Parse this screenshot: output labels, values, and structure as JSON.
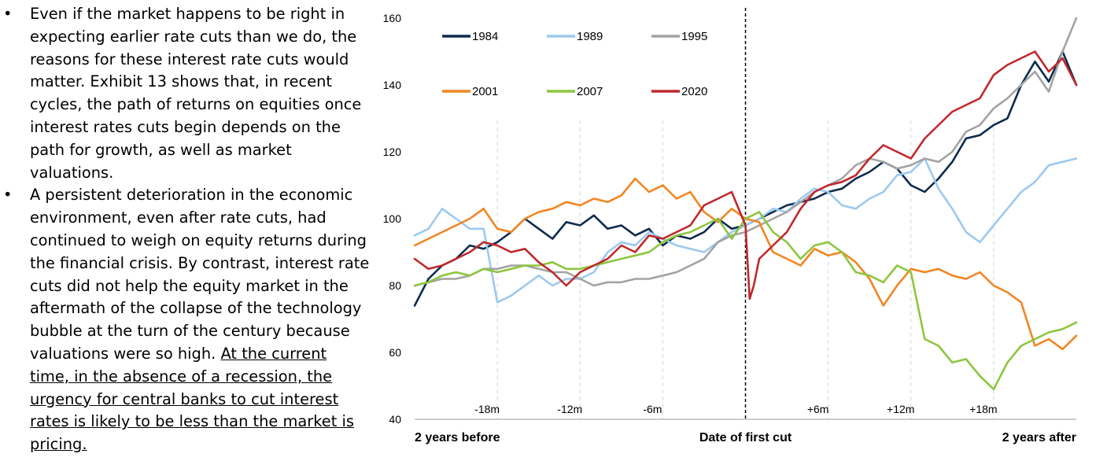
{
  "bullets": [
    {
      "text": "Even if the market happens to be right in expecting earlier rate cuts than we do, the reasons for these interest rate cuts would matter. Exhibit 13 shows that, in recent cycles, the path of returns on equities once interest rates cuts begin depends on the path for growth, as well as market valuations.",
      "underlined": ""
    },
    {
      "text": "A persistent deterioration in the economic environment, even after rate cuts, had continued to weigh on equity returns during the financial crisis. By contrast, interest rate cuts did not help the equity market in the aftermath of the collapse of the technology bubble at the turn of the century because valuations were so high.",
      "underlined": "At the current time, in the absence of a recession, the urgency for central banks to cut interest rates is likely to be less than the market is pricing."
    }
  ],
  "chart_data": {
    "type": "line",
    "title": "",
    "xlabel": "",
    "ylabel": "",
    "x_unit": "months relative to date of first cut",
    "xlim": [
      -24,
      24
    ],
    "ylim": [
      40,
      160
    ],
    "y_ticks": [
      40,
      60,
      80,
      100,
      120,
      140,
      160
    ],
    "x_ticks": [
      {
        "x": -18,
        "label": "-18m"
      },
      {
        "x": -12,
        "label": "-12m"
      },
      {
        "x": -6,
        "label": "-6m"
      },
      {
        "x": 6,
        "label": "+6m"
      },
      {
        "x": 12,
        "label": "+12m"
      },
      {
        "x": 18,
        "label": "+18m"
      }
    ],
    "x_labels_bottom": [
      {
        "x": -24,
        "label": "2 years before",
        "anchor": "start"
      },
      {
        "x": 0,
        "label": "Date of first cut",
        "anchor": "middle"
      },
      {
        "x": 24,
        "label": "2 years after",
        "anchor": "end"
      }
    ],
    "cut_line_x": 0,
    "grid": "vertical dashed at 6-month intervals",
    "legend": "top-left, two rows",
    "series": [
      {
        "name": "1984",
        "color": "#0d2a4d",
        "x": [
          -24,
          -23,
          -22,
          -21,
          -20,
          -19,
          -18,
          -17,
          -16,
          -15,
          -14,
          -13,
          -12,
          -11,
          -10,
          -9,
          -8,
          -7,
          -6,
          -5,
          -4,
          -3,
          -2,
          -1,
          0,
          1,
          2,
          3,
          4,
          5,
          6,
          7,
          8,
          9,
          10,
          11,
          12,
          13,
          14,
          15,
          16,
          17,
          18,
          19,
          20,
          21,
          22,
          23,
          24
        ],
        "y": [
          74,
          82,
          86,
          88,
          92,
          91,
          93,
          96,
          100,
          97,
          94,
          99,
          98,
          101,
          97,
          98,
          95,
          97,
          92,
          95,
          94,
          96,
          100,
          97,
          98,
          100,
          102,
          104,
          105,
          106,
          108,
          109,
          112,
          114,
          117,
          115,
          110,
          108,
          112,
          117,
          124,
          125,
          128,
          130,
          140,
          147,
          141,
          150,
          140
        ]
      },
      {
        "name": "1989",
        "color": "#9cc9ef",
        "x": [
          -24,
          -23,
          -22,
          -21,
          -20,
          -19,
          -18,
          -17,
          -16,
          -15,
          -14,
          -13,
          -12,
          -11,
          -10,
          -9,
          -8,
          -7,
          -6,
          -5,
          -4,
          -3,
          -2,
          -1,
          0,
          1,
          2,
          3,
          4,
          5,
          6,
          7,
          8,
          9,
          10,
          11,
          12,
          13,
          14,
          15,
          16,
          17,
          18,
          19,
          20,
          21,
          22,
          23,
          24
        ],
        "y": [
          95,
          97,
          103,
          100,
          97,
          97,
          75,
          77,
          80,
          83,
          80,
          82,
          82,
          84,
          90,
          93,
          92,
          96,
          94,
          92,
          91,
          90,
          93,
          96,
          98,
          100,
          103,
          102,
          106,
          109,
          108,
          104,
          103,
          106,
          108,
          113,
          114,
          118,
          109,
          103,
          96,
          93,
          98,
          103,
          108,
          111,
          116,
          117,
          118
        ]
      },
      {
        "name": "1995",
        "color": "#a3a3a3",
        "x": [
          -24,
          -23,
          -22,
          -21,
          -20,
          -19,
          -18,
          -17,
          -16,
          -15,
          -14,
          -13,
          -12,
          -11,
          -10,
          -9,
          -8,
          -7,
          -6,
          -5,
          -4,
          -3,
          -2,
          -1,
          0,
          1,
          2,
          3,
          4,
          5,
          6,
          7,
          8,
          9,
          10,
          11,
          12,
          13,
          14,
          15,
          16,
          17,
          18,
          19,
          20,
          21,
          22,
          23,
          24
        ],
        "y": [
          80,
          81,
          82,
          82,
          83,
          85,
          85,
          86,
          86,
          85,
          84,
          84,
          82,
          80,
          81,
          81,
          82,
          82,
          83,
          84,
          86,
          88,
          93,
          95,
          96,
          98,
          100,
          102,
          105,
          108,
          110,
          112,
          116,
          118,
          117,
          115,
          116,
          118,
          117,
          120,
          126,
          128,
          133,
          136,
          140,
          144,
          138,
          150,
          160
        ]
      },
      {
        "name": "2001",
        "color": "#f28522",
        "x": [
          -24,
          -23,
          -22,
          -21,
          -20,
          -19,
          -18,
          -17,
          -16,
          -15,
          -14,
          -13,
          -12,
          -11,
          -10,
          -9,
          -8,
          -7,
          -6,
          -5,
          -4,
          -3,
          -2,
          -1,
          0,
          1,
          2,
          3,
          4,
          5,
          6,
          7,
          8,
          9,
          10,
          11,
          12,
          13,
          14,
          15,
          16,
          17,
          18,
          19,
          20,
          21,
          22,
          23,
          24
        ],
        "y": [
          92,
          94,
          96,
          98,
          100,
          103,
          97,
          96,
          100,
          102,
          103,
          105,
          104,
          106,
          105,
          107,
          112,
          108,
          110,
          106,
          108,
          102,
          99,
          103,
          100,
          99,
          90,
          88,
          86,
          91,
          89,
          90,
          87,
          82,
          74,
          80,
          85,
          84,
          85,
          83,
          82,
          84,
          80,
          78,
          75,
          62,
          64,
          61,
          65
        ]
      },
      {
        "name": "2007",
        "color": "#8dc63f",
        "x": [
          -24,
          -23,
          -22,
          -21,
          -20,
          -19,
          -18,
          -17,
          -16,
          -15,
          -14,
          -13,
          -12,
          -11,
          -10,
          -9,
          -8,
          -7,
          -6,
          -5,
          -4,
          -3,
          -2,
          -1,
          0,
          1,
          2,
          3,
          4,
          5,
          6,
          7,
          8,
          9,
          10,
          11,
          12,
          13,
          14,
          15,
          16,
          17,
          18,
          19,
          20,
          21,
          22,
          23,
          24
        ],
        "y": [
          80,
          81,
          83,
          84,
          83,
          85,
          84,
          85,
          86,
          86,
          87,
          85,
          85,
          86,
          87,
          88,
          89,
          90,
          93,
          95,
          96,
          98,
          100,
          94,
          100,
          102,
          96,
          93,
          88,
          92,
          93,
          90,
          84,
          83,
          81,
          86,
          84,
          64,
          62,
          57,
          58,
          53,
          49,
          57,
          62,
          64,
          66,
          67,
          69
        ]
      },
      {
        "name": "2020",
        "color": "#c0282d",
        "x": [
          -24,
          -23,
          -22,
          -21,
          -20,
          -19,
          -18,
          -17,
          -16,
          -15,
          -14,
          -13,
          -12,
          -11,
          -10,
          -9,
          -8,
          -7,
          -6,
          -5,
          -4,
          -3,
          -2,
          -1,
          0,
          0.3,
          0.6,
          1,
          2,
          3,
          4,
          5,
          6,
          7,
          8,
          9,
          10,
          11,
          12,
          13,
          14,
          15,
          16,
          17,
          18,
          19,
          20,
          21,
          22,
          23,
          24
        ],
        "y": [
          88,
          85,
          86,
          88,
          90,
          93,
          92,
          90,
          91,
          87,
          84,
          80,
          84,
          86,
          88,
          92,
          90,
          95,
          94,
          96,
          98,
          104,
          106,
          108,
          98,
          76,
          80,
          88,
          92,
          96,
          103,
          108,
          110,
          111,
          113,
          118,
          122,
          120,
          118,
          124,
          128,
          132,
          134,
          136,
          143,
          146,
          148,
          150,
          144,
          148,
          140
        ]
      }
    ]
  }
}
